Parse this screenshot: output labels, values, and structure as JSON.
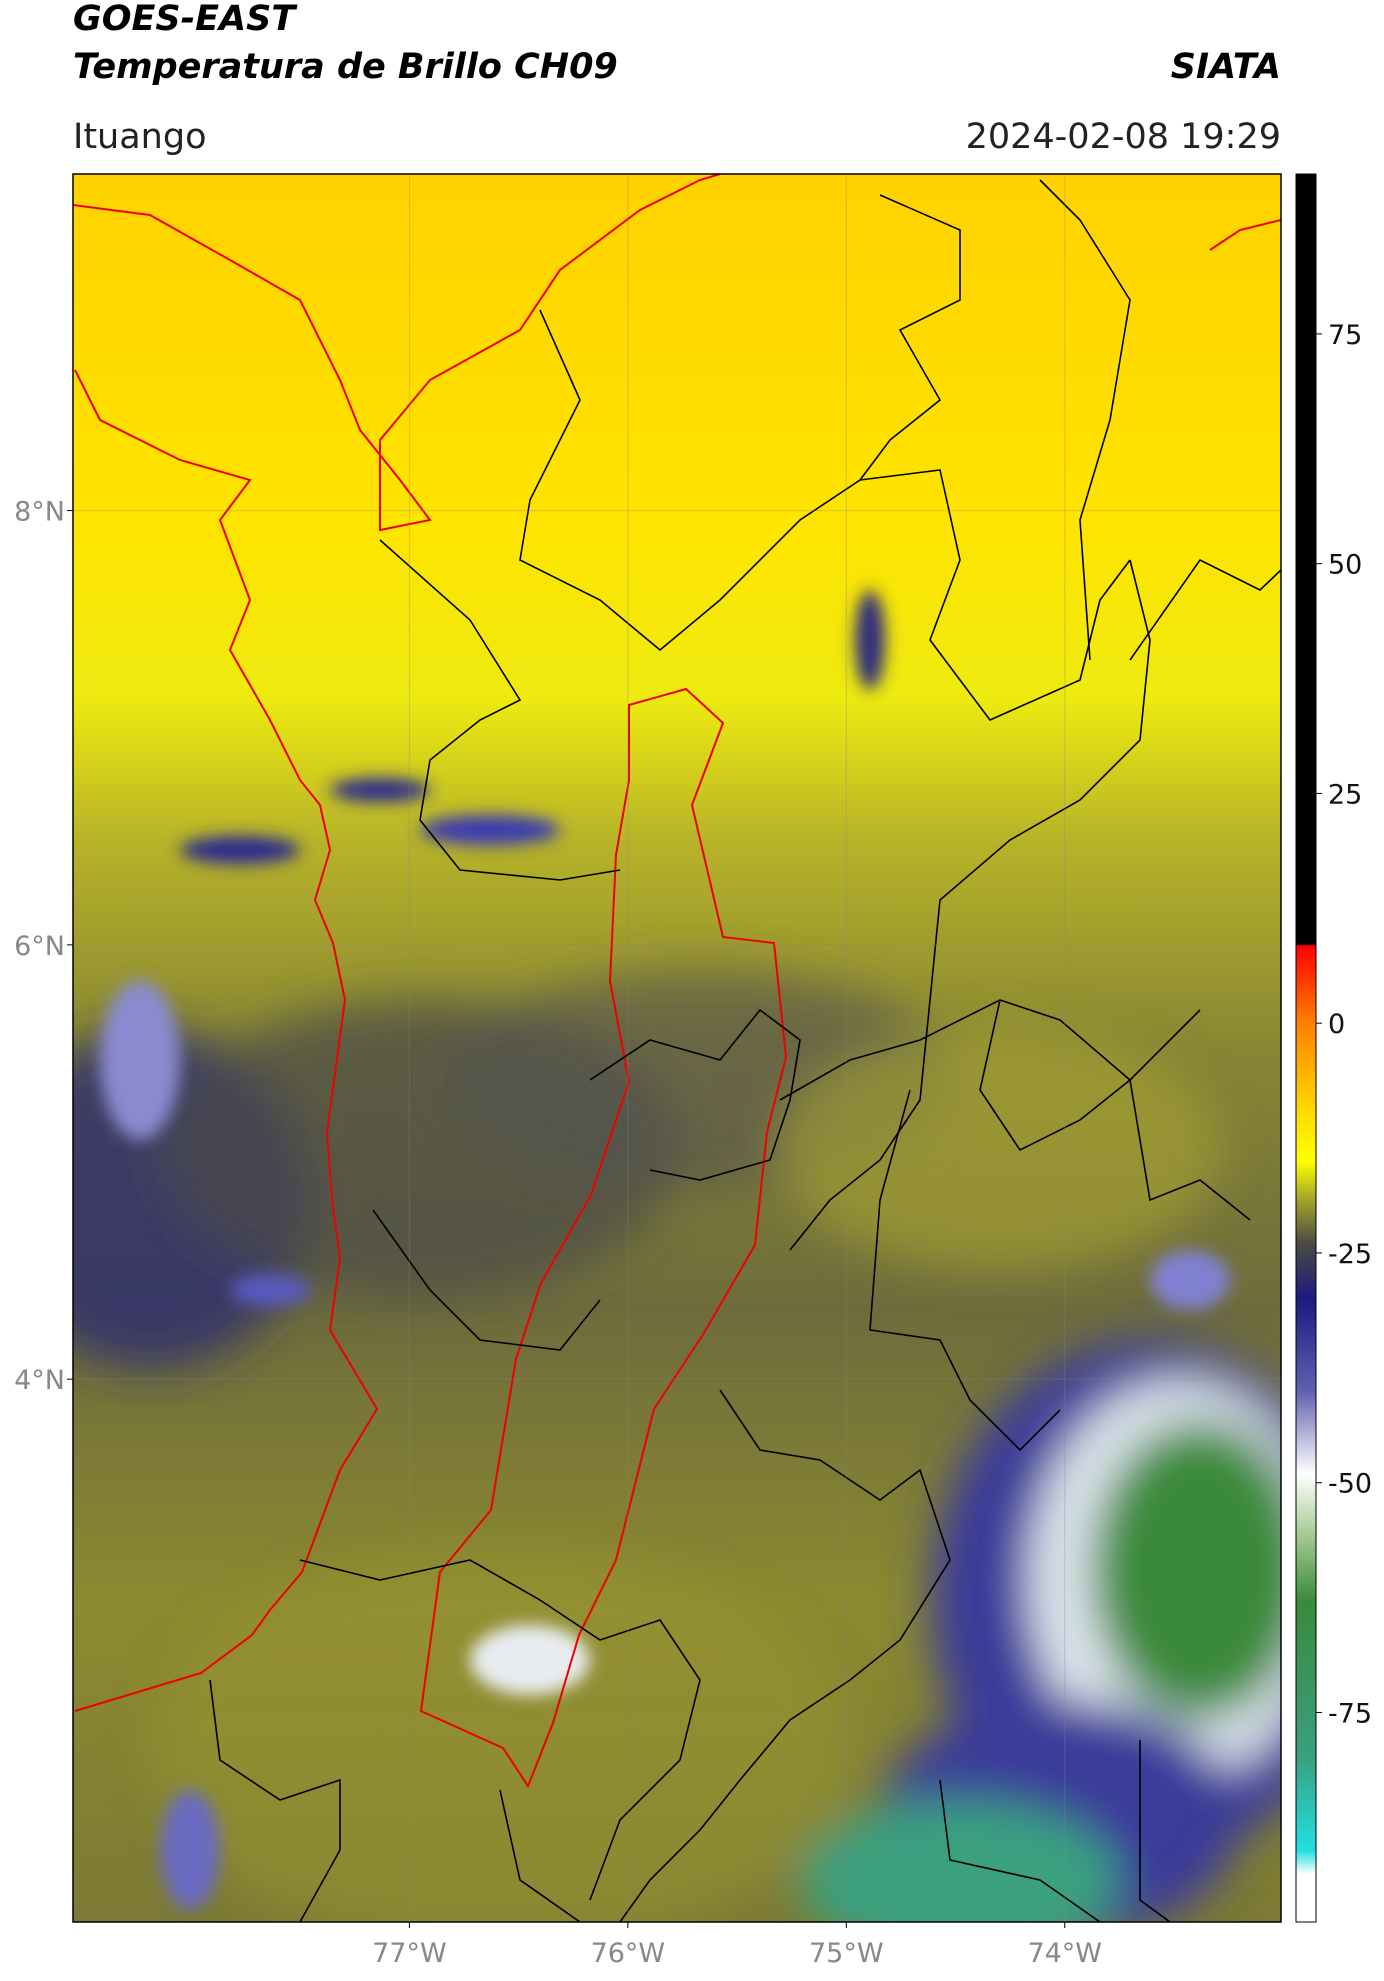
{
  "header": {
    "title_line1": "GOES-EAST",
    "title_line2": "Temperatura de Brillo CH09",
    "agency": "SIATA",
    "location": "Ituango",
    "datetime": "2024-02-08 19:29"
  },
  "map": {
    "lon_range": [
      -78.54,
      -73.01
    ],
    "lat_range": [
      1.5,
      9.55
    ],
    "grid": true,
    "lat_ticks": [
      {
        "value": 8,
        "label": "8°N"
      },
      {
        "value": 6,
        "label": "6°N"
      },
      {
        "value": 4,
        "label": "4°N"
      }
    ],
    "lon_ticks": [
      {
        "value": -77,
        "label": "77°W"
      },
      {
        "value": -76,
        "label": "76°W"
      },
      {
        "value": -75,
        "label": "75°W"
      },
      {
        "value": -74,
        "label": "74°W"
      }
    ]
  },
  "colorbar": {
    "range": [
      -97.8,
      92.4
    ],
    "ticks": [
      75,
      50,
      25,
      0,
      -25,
      -50,
      -75
    ],
    "stops": [
      {
        "value": 92.4,
        "color": "#000000"
      },
      {
        "value": 8.6,
        "color": "#000000"
      },
      {
        "value": 8.4,
        "color": "#ff0000"
      },
      {
        "value": 0,
        "color": "#ff8000"
      },
      {
        "value": -10,
        "color": "#ffdd00"
      },
      {
        "value": -15,
        "color": "#ffff00"
      },
      {
        "value": -19,
        "color": "#a8a828"
      },
      {
        "value": -24,
        "color": "#4a4a44"
      },
      {
        "value": -30,
        "color": "#1a1a80"
      },
      {
        "value": -40,
        "color": "#6060b0"
      },
      {
        "value": -49,
        "color": "#ffffff"
      },
      {
        "value": -56,
        "color": "#a0c890"
      },
      {
        "value": -63,
        "color": "#3a8a3a"
      },
      {
        "value": -80,
        "color": "#3aa080"
      },
      {
        "value": -90,
        "color": "#20e0e0"
      },
      {
        "value": -92.6,
        "color": "#ffffff"
      }
    ]
  }
}
